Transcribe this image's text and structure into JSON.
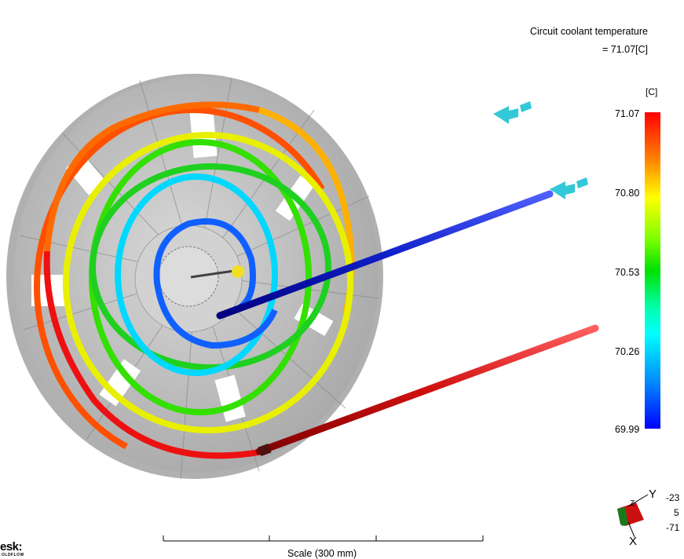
{
  "result": {
    "title": "Circuit coolant temperature",
    "value_text": "= 71.07[C]"
  },
  "legend": {
    "unit": "[C]",
    "ticks": [
      "71.07",
      "70.80",
      "70.53",
      "70.26",
      "69.99"
    ],
    "colors": [
      "#ff0000",
      "#ffff00",
      "#00e000",
      "#00ffff",
      "#0000ff"
    ]
  },
  "triad": {
    "axis_y": "Y",
    "axis_z": "Z",
    "axis_x": "X",
    "values": [
      "-23",
      "5",
      "-71"
    ]
  },
  "scale": {
    "label": "Scale (300 mm)"
  },
  "logo": {
    "text": "esk:",
    "subtext": "OLDFLOW"
  },
  "colors": {
    "mold_gray": "#c8c8c8",
    "outlet_pipe": "#cc1010",
    "inlet_pipe": "#1020c8",
    "arrow": "#33c8d8",
    "gate": "#f0e020"
  }
}
